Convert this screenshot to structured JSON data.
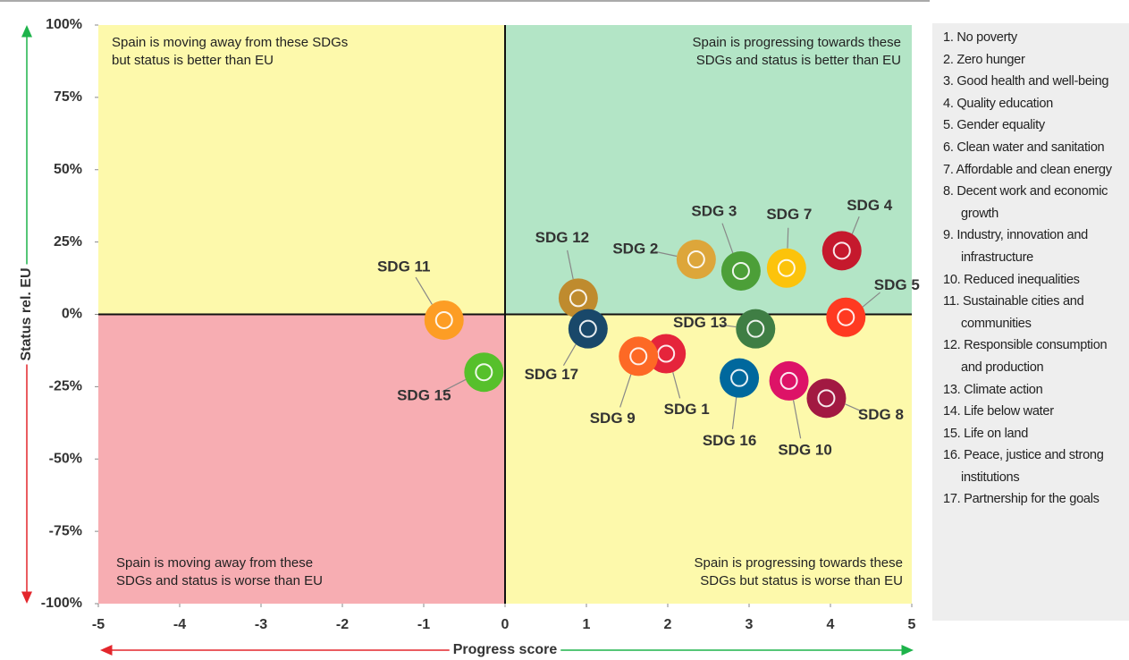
{
  "chart_data": {
    "type": "scatter",
    "xlabel": "Progress score",
    "ylabel": "Status rel. EU",
    "xlim": [
      -5,
      5
    ],
    "xticks": [
      -5,
      -4,
      -3,
      -2,
      -1,
      0,
      1,
      2,
      3,
      4,
      5
    ],
    "ylim": [
      -100,
      100
    ],
    "yticks": [
      {
        "value": 100,
        "label": "100%"
      },
      {
        "value": 75,
        "label": "75%"
      },
      {
        "value": 50,
        "label": "50%"
      },
      {
        "value": 25,
        "label": "25%"
      },
      {
        "value": 0,
        "label": "0%"
      },
      {
        "value": -25,
        "label": "-25%"
      },
      {
        "value": -50,
        "label": "-50%"
      },
      {
        "value": -75,
        "label": "-75%"
      },
      {
        "value": -100,
        "label": "-100%"
      }
    ],
    "annotations": [
      [
        "Spain is moving away from these SDGs",
        "but status is better than EU"
      ],
      [
        "Spain is progressing towards these",
        "SDGs and status is better than EU"
      ],
      [
        "Spain is moving away from these",
        "SDGs and status is worse than EU"
      ],
      [
        "Spain is progressing towards these",
        "SDGs but status is worse than EU"
      ]
    ],
    "labels": [
      "SDG 1",
      "SDG 2",
      "SDG 3",
      "SDG 4",
      "SDG 5",
      "SDG 7",
      "SDG 8",
      "SDG 9",
      "SDG 10",
      "SDG 11",
      "SDG 12",
      "SDG 13",
      "SDG 15",
      "SDG 16",
      "SDG 17"
    ],
    "x": [
      1.98,
      2.35,
      2.9,
      4.14,
      4.19,
      3.46,
      3.95,
      1.64,
      3.49,
      -0.75,
      0.9,
      3.08,
      -0.26,
      2.88,
      1.02
    ],
    "values": [
      -13.6,
      19,
      15,
      22,
      -1,
      16,
      -29,
      -14.5,
      -23,
      -2,
      5.6,
      -5,
      -20,
      -22,
      -5
    ],
    "colors": [
      "#e5243b",
      "#dda63a",
      "#4c9f38",
      "#c5192d",
      "#ff3a21",
      "#fcc30b",
      "#a21942",
      "#fd6925",
      "#dd1367",
      "#fd9d24",
      "#bf8b2e",
      "#3f7e44",
      "#56c02b",
      "#00689d",
      "#19486a"
    ],
    "legend": [
      "1. No poverty",
      "2. Zero hunger",
      "3. Good health and well-being",
      "4. Quality education",
      "5. Gender equality",
      "6. Clean water and sanitation",
      "7. Affordable and clean energy",
      "8. Decent work and economic growth",
      "9. Industry, innovation and infrastructure",
      "10. Reduced inequalities",
      "11. Sustainable cities and communities",
      "12. Responsible consumption and production",
      "13. Climate action",
      "14. Life below water",
      "15. Life on land",
      "16. Peace, justice and strong institutions",
      "17. Partnership for the goals"
    ]
  }
}
